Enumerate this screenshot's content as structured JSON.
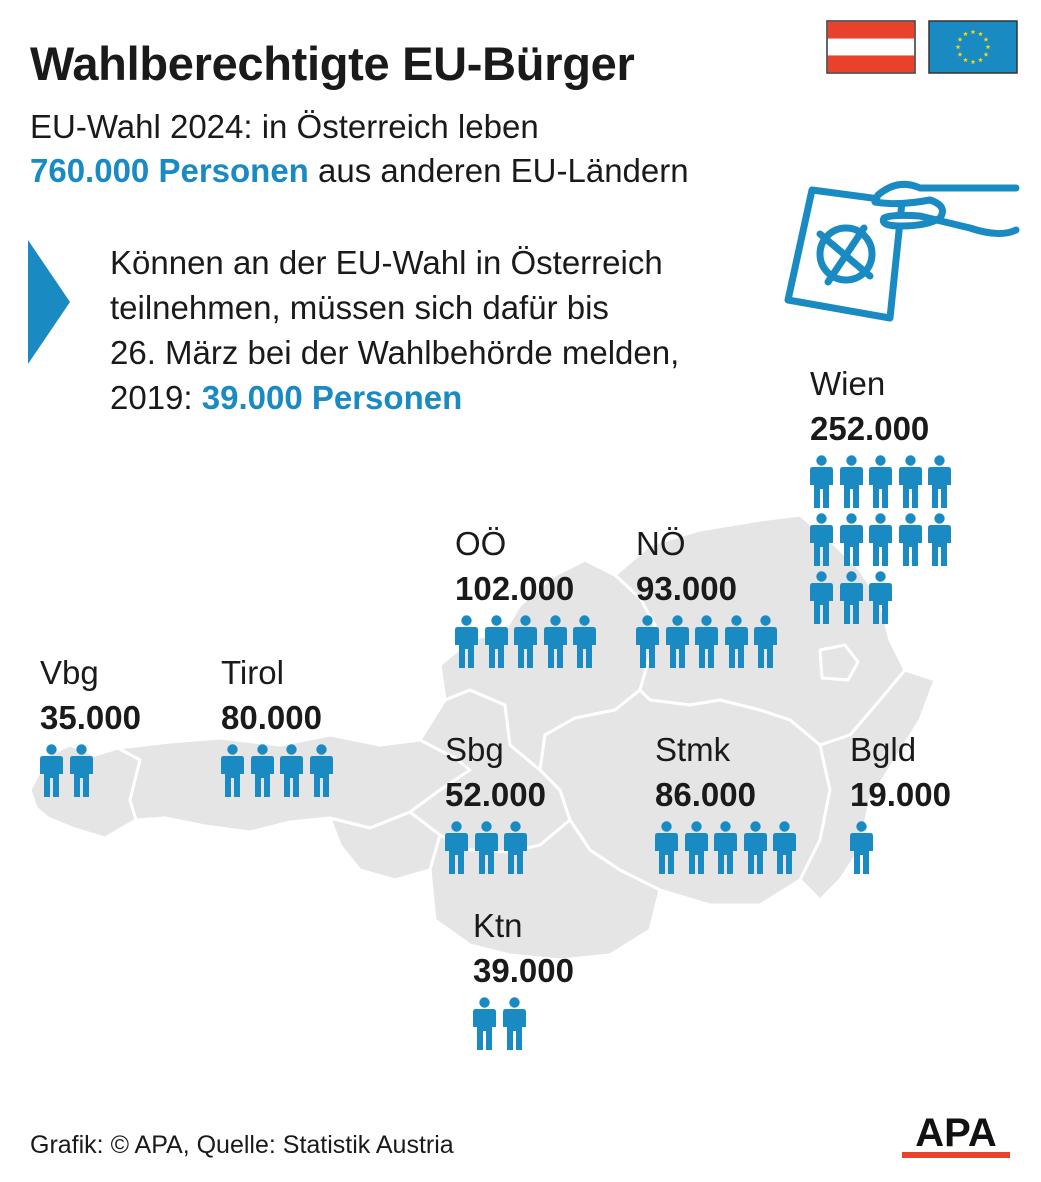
{
  "title": "Wahlberechtigte EU-Bürger",
  "subtitle": {
    "line1": "EU-Wahl 2024: in Österreich leben",
    "line2_highlight": "760.000 Personen",
    "line2_rest": " aus anderen EU-Ländern"
  },
  "note": {
    "line1": "Können an der EU-Wahl in Österreich",
    "line2": "teilnehmen, müssen sich dafür bis",
    "line3": "26. März bei der Wahlbehörde melden,",
    "line4_prefix": "2019: ",
    "line4_highlight": "39.000 Personen"
  },
  "colors": {
    "accent": "#1a8ac2",
    "map_fill": "#e5e5e5",
    "map_border": "#ffffff",
    "text": "#1a1a1a",
    "flag_red": "#e8412c",
    "flag_eu_blue": "#1a8ac2",
    "eu_stars": "#f4d90f"
  },
  "icons": [
    "austria-flag-icon",
    "eu-flag-icon",
    "ballot-hand-icon",
    "arrow-icon",
    "person-icon",
    "apa-logo-icon"
  ],
  "chart_data": {
    "type": "pictogram",
    "title": "Wahlberechtigte EU-Bürger",
    "unit_per_icon": "approx. 20.000 Personen",
    "categories": [
      "Wien",
      "OÖ",
      "NÖ",
      "Vbg",
      "Tirol",
      "Sbg",
      "Stmk",
      "Bgld",
      "Ktn"
    ],
    "values": [
      252000,
      102000,
      93000,
      35000,
      80000,
      52000,
      86000,
      19000,
      39000
    ],
    "value_labels": [
      "252.000",
      "102.000",
      "93.000",
      "35.000",
      "80.000",
      "52.000",
      "86.000",
      "19.000",
      "39.000"
    ],
    "icon_counts": [
      13,
      5,
      5,
      2,
      4,
      3,
      5,
      1,
      2
    ],
    "total": 760000
  },
  "footer": "Grafik: © APA, Quelle: Statistik Austria",
  "logo_text": "APA"
}
